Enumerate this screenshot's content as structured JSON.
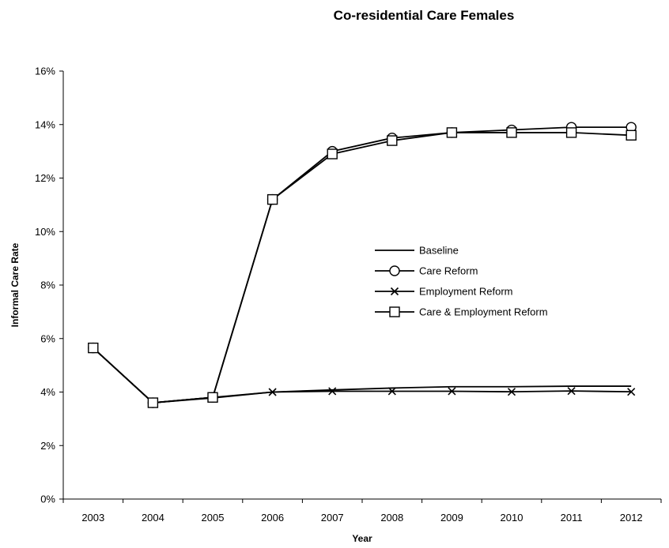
{
  "chart_data": {
    "type": "line",
    "title": "Co-residential Care Females",
    "xlabel": "Year",
    "ylabel": "Informal Care Rate",
    "x": [
      "2003",
      "2004",
      "2005",
      "2006",
      "2007",
      "2008",
      "2009",
      "2010",
      "2011",
      "2012"
    ],
    "y_ticks": [
      "0%",
      "2%",
      "4%",
      "6%",
      "8%",
      "10%",
      "12%",
      "14%",
      "16%"
    ],
    "ylim": [
      0,
      16
    ],
    "y_unit": "%",
    "grid": false,
    "legend_position": "center-right",
    "series": [
      {
        "name": "Baseline",
        "marker": "none",
        "values": [
          5.65,
          3.6,
          3.8,
          4.0,
          4.08,
          4.15,
          4.2,
          4.2,
          4.22,
          4.22
        ]
      },
      {
        "name": "Care Reform",
        "marker": "circle",
        "values": [
          5.65,
          3.6,
          3.8,
          11.2,
          13.0,
          13.5,
          13.7,
          13.8,
          13.9,
          13.9
        ]
      },
      {
        "name": "Employment Reform",
        "marker": "cross",
        "values": [
          5.65,
          3.6,
          3.78,
          4.0,
          4.03,
          4.03,
          4.03,
          4.01,
          4.04,
          4.01
        ]
      },
      {
        "name": "Care & Employment Reform",
        "marker": "square",
        "values": [
          5.65,
          3.6,
          3.8,
          11.2,
          12.9,
          13.4,
          13.7,
          13.7,
          13.7,
          13.6
        ]
      }
    ]
  }
}
